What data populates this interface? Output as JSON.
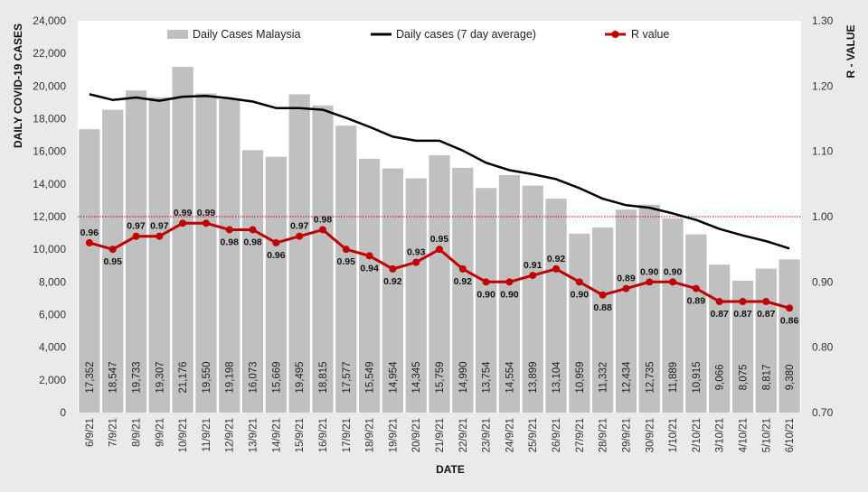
{
  "chart_data": {
    "type": "bar",
    "title": "",
    "xlabel": "DATE",
    "ylabel": "DAILY COVID-19 CASES",
    "y2label": "R - VALUE",
    "ylim": [
      0,
      24000
    ],
    "y_ticks": [
      "0",
      "2,000",
      "4,000",
      "6,000",
      "8,000",
      "10,000",
      "12,000",
      "14,000",
      "16,000",
      "18,000",
      "20,000",
      "22,000",
      "24,000"
    ],
    "y2lim": [
      0.7,
      1.3
    ],
    "y2_ticks": [
      "0.70",
      "0.80",
      "0.90",
      "1.00",
      "1.10",
      "1.20",
      "1.30"
    ],
    "reference_line_r": 1.0,
    "legend_position": "top",
    "categories": [
      "6/9/21",
      "7/9/21",
      "8/9/21",
      "9/9/21",
      "10/9/21",
      "11/9/21",
      "12/9/21",
      "13/9/21",
      "14/9/21",
      "15/9/21",
      "16/9/21",
      "17/9/21",
      "18/9/21",
      "19/9/21",
      "20/9/21",
      "21/9/21",
      "22/9/21",
      "23/9/21",
      "24/9/21",
      "25/9/21",
      "26/9/21",
      "27/9/21",
      "28/9/21",
      "29/9/21",
      "30/9/21",
      "1/10/21",
      "2/10/21",
      "3/10/21",
      "4/10/21",
      "5/10/21",
      "6/10/21"
    ],
    "series": [
      {
        "name": "Daily Cases Malaysia",
        "kind": "bar",
        "axis": "left",
        "color": "#c0c0c0",
        "values": [
          17352,
          18547,
          19733,
          19307,
          21176,
          19550,
          19198,
          16073,
          15669,
          19495,
          18815,
          17577,
          15549,
          14954,
          14345,
          15759,
          14990,
          13754,
          14554,
          13899,
          13104,
          10959,
          11332,
          12434,
          12735,
          11889,
          10915,
          9066,
          8075,
          8817,
          9380
        ],
        "labels": [
          "17,352",
          "18,547",
          "19,733",
          "19,307",
          "21,176",
          "19,550",
          "19,198",
          "16,073",
          "15,669",
          "19,495",
          "18,815",
          "17,577",
          "15,549",
          "14,954",
          "14,345",
          "15,759",
          "14,990",
          "13,754",
          "14,554",
          "13,899",
          "13,104",
          "10,959",
          "11,332",
          "12,434",
          "12,735",
          "11,889",
          "10,915",
          "9,066",
          "8,075",
          "8,817",
          "9,380"
        ]
      },
      {
        "name": "Daily cases (7 day average)",
        "kind": "line",
        "axis": "left",
        "color": "#000000",
        "values": [
          19500,
          19150,
          19300,
          19100,
          19350,
          19400,
          19250,
          19050,
          18650,
          18650,
          18550,
          18050,
          17500,
          16900,
          16650,
          16650,
          16050,
          15300,
          14850,
          14600,
          14300,
          13750,
          13100,
          12700,
          12550,
          12200,
          11800,
          11250,
          10850,
          10500,
          10050
        ]
      },
      {
        "name": "R value",
        "kind": "line",
        "axis": "right",
        "color": "#c00000",
        "values": [
          0.96,
          0.95,
          0.97,
          0.97,
          0.99,
          0.99,
          0.98,
          0.98,
          0.96,
          0.97,
          0.98,
          0.95,
          0.94,
          0.92,
          0.93,
          0.95,
          0.92,
          0.9,
          0.9,
          0.91,
          0.92,
          0.9,
          0.88,
          0.89,
          0.9,
          0.9,
          0.89,
          0.87,
          0.87,
          0.87,
          0.86
        ],
        "labels": [
          "0.96",
          "0.95",
          "0.97",
          "0.97",
          "0.99",
          "0.99",
          "0.98",
          "0.98",
          "0.96",
          "0.97",
          "0.98",
          "0.95",
          "0.94",
          "0.92",
          "0.93",
          "0.95",
          "0.92",
          "0.90",
          "0.90",
          "0.91",
          "0.92",
          "0.90",
          "0.88",
          "0.89",
          "0.90",
          "0.90",
          "0.89",
          "0.87",
          "0.87",
          "0.87",
          "0.86"
        ],
        "label_side": [
          "above",
          "below",
          "above",
          "above",
          "above",
          "above",
          "below",
          "below",
          "below",
          "above",
          "above",
          "below",
          "below",
          "below",
          "above",
          "above",
          "below",
          "below",
          "below",
          "above",
          "above",
          "below",
          "below",
          "above",
          "above",
          "above",
          "below",
          "below",
          "below",
          "below",
          "below"
        ]
      }
    ]
  }
}
